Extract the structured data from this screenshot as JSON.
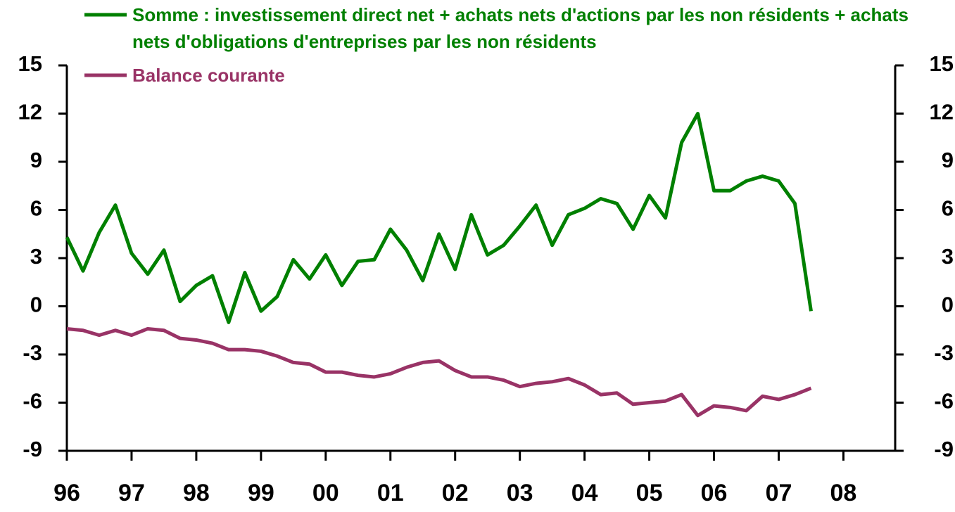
{
  "chart_data": {
    "type": "line",
    "x": [
      1996,
      1996.25,
      1996.5,
      1996.75,
      1997,
      1997.25,
      1997.5,
      1997.75,
      1998,
      1998.25,
      1998.5,
      1998.75,
      1999,
      1999.25,
      1999.5,
      1999.75,
      2000,
      2000.25,
      2000.5,
      2000.75,
      2001,
      2001.25,
      2001.5,
      2001.75,
      2002,
      2002.25,
      2002.5,
      2002.75,
      2003,
      2003.25,
      2003.5,
      2003.75,
      2004,
      2004.25,
      2004.5,
      2004.75,
      2005,
      2005.25,
      2005.5,
      2005.75,
      2006,
      2006.25,
      2006.5,
      2006.75,
      2007,
      2007.25,
      2007.5
    ],
    "series": [
      {
        "name": "Somme : investissement direct net + achats nets d'actions par les non résidents + achats nets d'obligations d'entreprises par les non résidents",
        "color": "#008000",
        "values": [
          4.3,
          2.2,
          4.6,
          6.3,
          3.3,
          2.0,
          3.5,
          0.3,
          1.3,
          1.9,
          -1.0,
          2.1,
          -0.3,
          0.6,
          2.9,
          1.7,
          3.2,
          1.3,
          2.8,
          2.9,
          4.8,
          3.5,
          1.6,
          4.5,
          2.3,
          5.7,
          3.2,
          3.8,
          5.0,
          6.3,
          3.8,
          5.7,
          6.1,
          6.7,
          6.4,
          4.8,
          6.9,
          5.5,
          10.2,
          12.0,
          7.2,
          7.2,
          7.8,
          8.1,
          7.8,
          6.4,
          -0.3
        ]
      },
      {
        "name": "Balance courante",
        "color": "#993366",
        "values": [
          -1.4,
          -1.5,
          -1.8,
          -1.5,
          -1.8,
          -1.4,
          -1.5,
          -2.0,
          -2.1,
          -2.3,
          -2.7,
          -2.7,
          -2.8,
          -3.1,
          -3.5,
          -3.6,
          -4.1,
          -4.1,
          -4.3,
          -4.4,
          -4.2,
          -3.8,
          -3.5,
          -3.4,
          -4.0,
          -4.4,
          -4.4,
          -4.6,
          -5.0,
          -4.8,
          -4.7,
          -4.5,
          -4.9,
          -5.5,
          -5.4,
          -6.1,
          -6.0,
          -5.9,
          -5.5,
          -6.8,
          -6.2,
          -6.3,
          -6.5,
          -5.6,
          -5.8,
          -5.5,
          -5.1
        ]
      }
    ],
    "xlim": [
      1996,
      2008.8
    ],
    "xticks": [
      {
        "value": 1996,
        "label": "96"
      },
      {
        "value": 1997,
        "label": "97"
      },
      {
        "value": 1998,
        "label": "98"
      },
      {
        "value": 1999,
        "label": "99"
      },
      {
        "value": 2000,
        "label": "00"
      },
      {
        "value": 2001,
        "label": "01"
      },
      {
        "value": 2002,
        "label": "02"
      },
      {
        "value": 2003,
        "label": "03"
      },
      {
        "value": 2004,
        "label": "04"
      },
      {
        "value": 2005,
        "label": "05"
      },
      {
        "value": 2006,
        "label": "06"
      },
      {
        "value": 2007,
        "label": "07"
      },
      {
        "value": 2008,
        "label": "08"
      }
    ],
    "ylim": [
      -9,
      15
    ],
    "yticks": [
      -9,
      -6,
      -3,
      0,
      3,
      6,
      9,
      12,
      15
    ],
    "y2lim": [
      -9,
      15
    ],
    "y2ticks": [
      -9,
      -6,
      -3,
      0,
      3,
      6,
      9,
      12,
      15
    ],
    "legend": "top"
  }
}
